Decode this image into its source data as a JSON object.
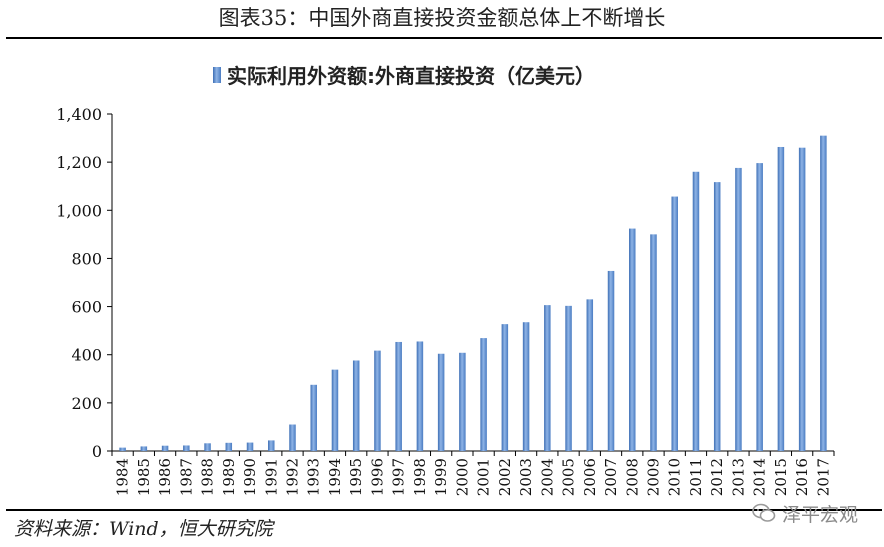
{
  "figure": {
    "title": "图表35：中国外商直接投资金额总体上不断增长",
    "source": "资料来源：Wind，恒大研究院",
    "watermark": "泽平宏观"
  },
  "chart_data": {
    "type": "bar",
    "title": "",
    "xlabel": "",
    "ylabel": "",
    "categories": [
      "1984",
      "1985",
      "1986",
      "1987",
      "1988",
      "1989",
      "1990",
      "1991",
      "1992",
      "1993",
      "1994",
      "1995",
      "1996",
      "1997",
      "1998",
      "1999",
      "2000",
      "2001",
      "2002",
      "2003",
      "2004",
      "2005",
      "2006",
      "2007",
      "2008",
      "2009",
      "2010",
      "2011",
      "2012",
      "2013",
      "2014",
      "2015",
      "2016",
      "2017"
    ],
    "series": [
      {
        "name": "实际利用外资额:外商直接投资（亿美元）",
        "color": "#5B8FD0",
        "values": [
          14,
          19,
          22,
          23,
          32,
          34,
          35,
          44,
          110,
          275,
          338,
          376,
          417,
          453,
          455,
          404,
          408,
          469,
          527,
          535,
          606,
          603,
          630,
          748,
          924,
          900,
          1057,
          1160,
          1117,
          1176,
          1196,
          1263,
          1260,
          1310
        ]
      }
    ],
    "ylim": [
      0,
      1400
    ],
    "yticks": [
      0,
      200,
      400,
      600,
      800,
      1000,
      1200,
      1400
    ],
    "ytick_labels": [
      "0",
      "200",
      "400",
      "600",
      "800",
      "1,000",
      "1,200",
      "1,400"
    ],
    "legend_position": "top",
    "grid": false
  }
}
